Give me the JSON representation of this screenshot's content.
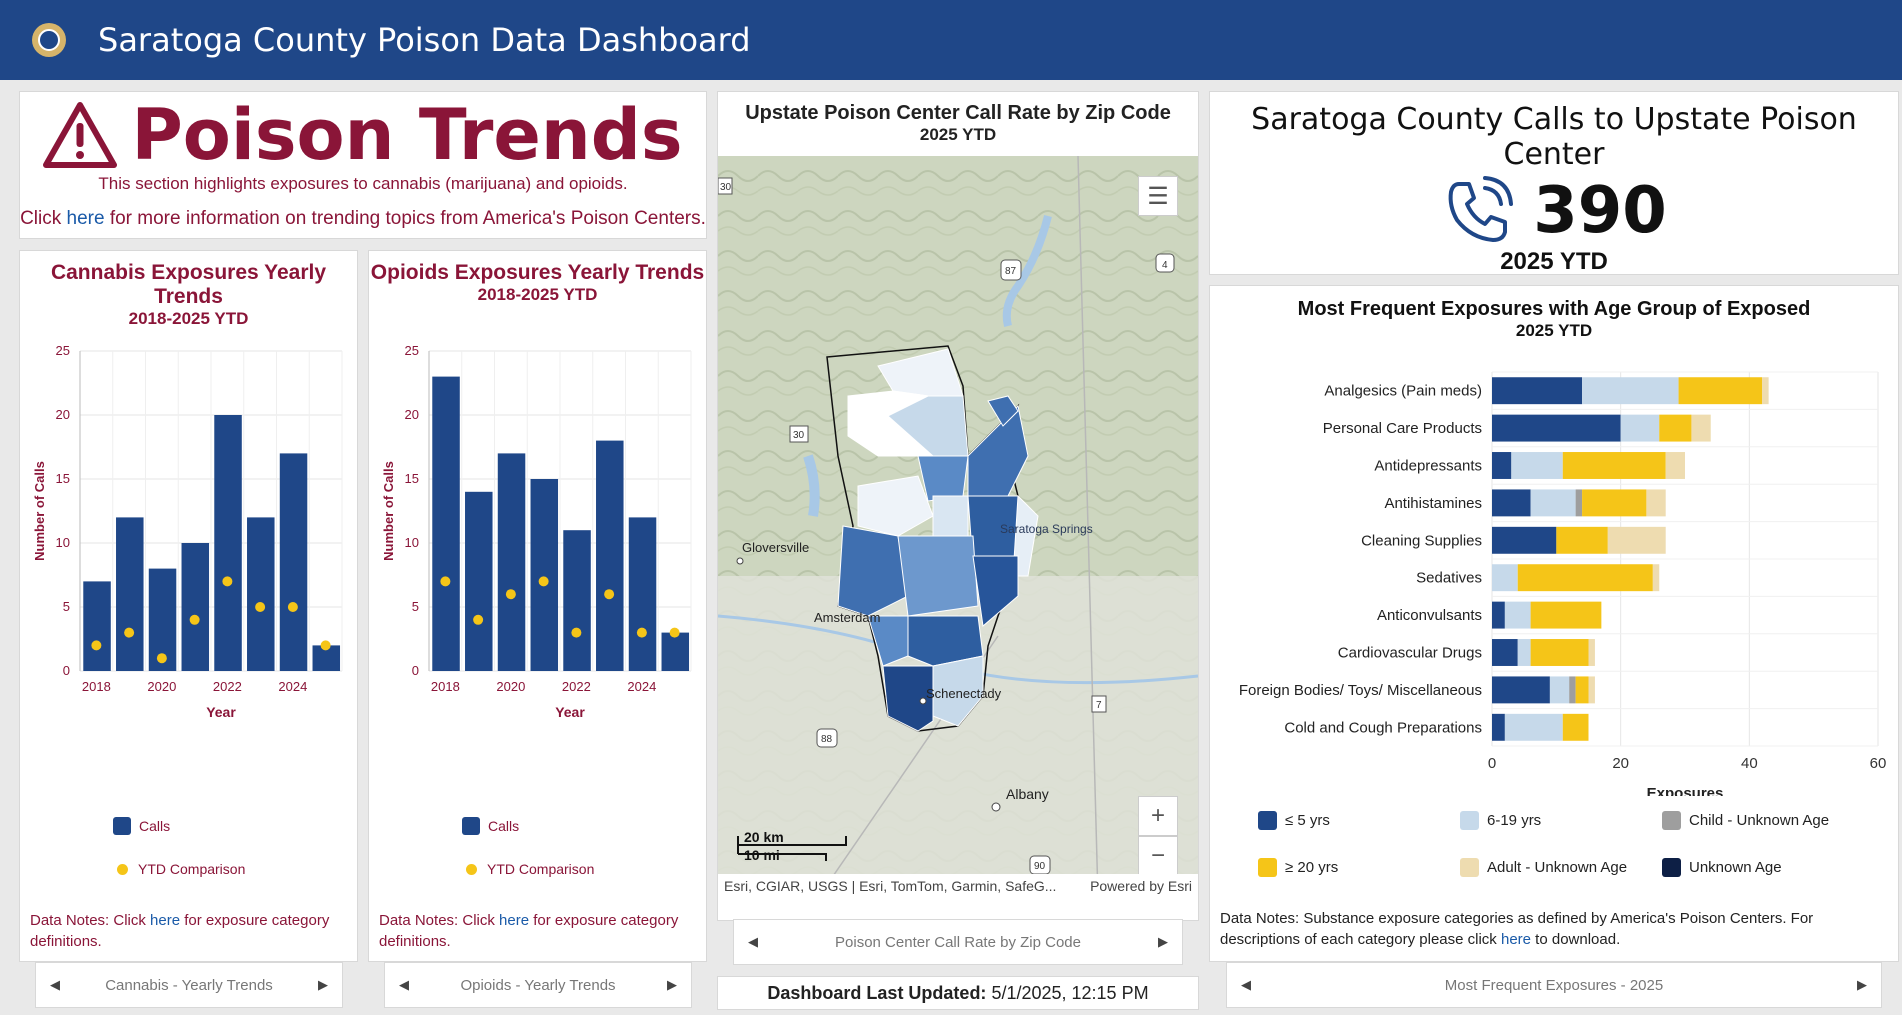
{
  "header": {
    "title": "Saratoga County Poison Data Dashboard"
  },
  "trends": {
    "title": "Poison Trends",
    "subtitle": "This section highlights exposures to cannabis (marijuana) and opioids.",
    "more_prefix": "Click ",
    "more_link": "here",
    "more_suffix": " for more information on trending topics from America's Poison Centers."
  },
  "cannabis": {
    "title": "Cannabis Exposures Yearly Trends",
    "subtitle": "2018-2025 YTD",
    "legend_calls": "Calls",
    "legend_ytd": "YTD Comparison",
    "notes_prefix": "Data Notes: Click ",
    "notes_link": "here",
    "notes_suffix": " for exposure category definitions.",
    "nav_label": "Cannabis - Yearly Trends"
  },
  "opioids": {
    "title": "Opioids Exposures Yearly Trends",
    "subtitle": "2018-2025 YTD",
    "legend_calls": "Calls",
    "legend_ytd": "YTD Comparison",
    "notes_prefix": "Data Notes: Click ",
    "notes_link": "here",
    "notes_suffix": " for exposure category definitions.",
    "nav_label": "Opioids - Yearly Trends"
  },
  "map": {
    "title": "Upstate Poison Center Call Rate by Zip Code",
    "subtitle": "2025 YTD",
    "attribution": "Esri, CGIAR, USGS | Esri, TomTom, Garmin, SafeG...",
    "powered": "Powered by Esri",
    "scale_km": "20 km",
    "scale_mi": "10 mi",
    "places": {
      "gloversville": "Gloversville",
      "amsterdam": "Amsterdam",
      "schenectady": "Schenectady",
      "albany": "Albany",
      "saratoga": "Saratoga Springs"
    },
    "shields": {
      "s30a": "30",
      "s87": "87",
      "s4": "4",
      "s30b": "30",
      "s88": "88",
      "s7": "7",
      "s90": "90"
    },
    "nav_label": "Poison Center Call Rate by Zip Code",
    "zoom_in": "+",
    "zoom_out": "−"
  },
  "updated": {
    "label": "Dashboard Last Updated:",
    "value": "5/1/2025, 12:15 PM"
  },
  "calls": {
    "title": "Saratoga County Calls to Upstate Poison Center",
    "value": "390",
    "period": "2025 YTD"
  },
  "exposures": {
    "title": "Most Frequent Exposures with Age Group of Exposed",
    "subtitle": "2025 YTD",
    "notes_prefix": "Data Notes: Substance exposure categories as defined by America's Poison Centers. For descriptions of each category please click ",
    "notes_link": "here",
    "notes_suffix": " to download.",
    "nav_label": "Most Frequent Exposures - 2025"
  },
  "colors": {
    "navy": "#1f4788",
    "maroon": "#8a1538",
    "gold": "#f5c518"
  },
  "chart_data": [
    {
      "type": "bar",
      "title": "Cannabis Exposures Yearly Trends",
      "subtitle": "2018-2025 YTD",
      "xlabel": "Year",
      "ylabel": "Number of Calls",
      "ylim": [
        0,
        25
      ],
      "yticks": [
        0,
        5,
        10,
        15,
        20,
        25
      ],
      "xticks": [
        "2018",
        "2020",
        "2022",
        "2024"
      ],
      "categories": [
        "2018",
        "2019",
        "2020",
        "2021",
        "2022",
        "2023",
        "2024",
        "2025"
      ],
      "series": [
        {
          "name": "Calls",
          "type": "bar",
          "values": [
            7,
            12,
            8,
            10,
            20,
            12,
            17,
            2
          ]
        },
        {
          "name": "YTD Comparison",
          "type": "scatter",
          "values": [
            2,
            3,
            1,
            4,
            7,
            5,
            5,
            2
          ]
        }
      ],
      "grid": true
    },
    {
      "type": "bar",
      "title": "Opioids Exposures Yearly Trends",
      "subtitle": "2018-2025 YTD",
      "xlabel": "Year",
      "ylabel": "Number of Calls",
      "ylim": [
        0,
        25
      ],
      "yticks": [
        0,
        5,
        10,
        15,
        20,
        25
      ],
      "xticks": [
        "2018",
        "2020",
        "2022",
        "2024"
      ],
      "categories": [
        "2018",
        "2019",
        "2020",
        "2021",
        "2022",
        "2023",
        "2024",
        "2025"
      ],
      "series": [
        {
          "name": "Calls",
          "type": "bar",
          "values": [
            23,
            14,
            17,
            15,
            11,
            18,
            12,
            3
          ]
        },
        {
          "name": "YTD Comparison",
          "type": "scatter",
          "values": [
            7,
            4,
            6,
            7,
            3,
            6,
            3,
            3
          ]
        }
      ],
      "grid": true
    },
    {
      "type": "bar",
      "orientation": "horizontal",
      "stacked": true,
      "title": "Most Frequent Exposures with Age Group of Exposed",
      "subtitle": "2025 YTD",
      "xlabel": "Exposures",
      "xlim": [
        0,
        60
      ],
      "xticks": [
        0,
        20,
        40,
        60
      ],
      "categories": [
        "Analgesics (Pain meds)",
        "Personal Care Products",
        "Antidepressants",
        "Antihistamines",
        "Cleaning Supplies",
        "Sedatives",
        "Anticonvulsants",
        "Cardiovascular Drugs",
        "Foreign Bodies/ Toys/ Miscellaneous",
        "Cold and Cough Preparations"
      ],
      "series": [
        {
          "name": "≤ 5 yrs",
          "color": "#1f4788",
          "values": [
            14,
            20,
            3,
            6,
            10,
            0,
            2,
            4,
            9,
            2
          ]
        },
        {
          "name": "6-19 yrs",
          "color": "#c6d9ea",
          "values": [
            15,
            6,
            8,
            7,
            0,
            4,
            4,
            2,
            3,
            9
          ]
        },
        {
          "name": "Child - Unknown Age",
          "color": "#9e9e9e",
          "values": [
            0,
            0,
            0,
            1,
            0,
            0,
            0,
            0,
            1,
            0
          ]
        },
        {
          "name": "≥ 20 yrs",
          "color": "#f5c518",
          "values": [
            13,
            5,
            16,
            10,
            8,
            21,
            11,
            9,
            2,
            4
          ]
        },
        {
          "name": "Adult - Unknown Age",
          "color": "#eedcb0",
          "values": [
            1,
            3,
            3,
            3,
            9,
            1,
            0,
            1,
            1,
            0
          ]
        },
        {
          "name": "Unknown Age",
          "color": "#0d1f45",
          "values": [
            0,
            0,
            0,
            0,
            0,
            0,
            0,
            0,
            0,
            0
          ]
        }
      ],
      "legend_placement": "bottom",
      "grid": true
    }
  ]
}
